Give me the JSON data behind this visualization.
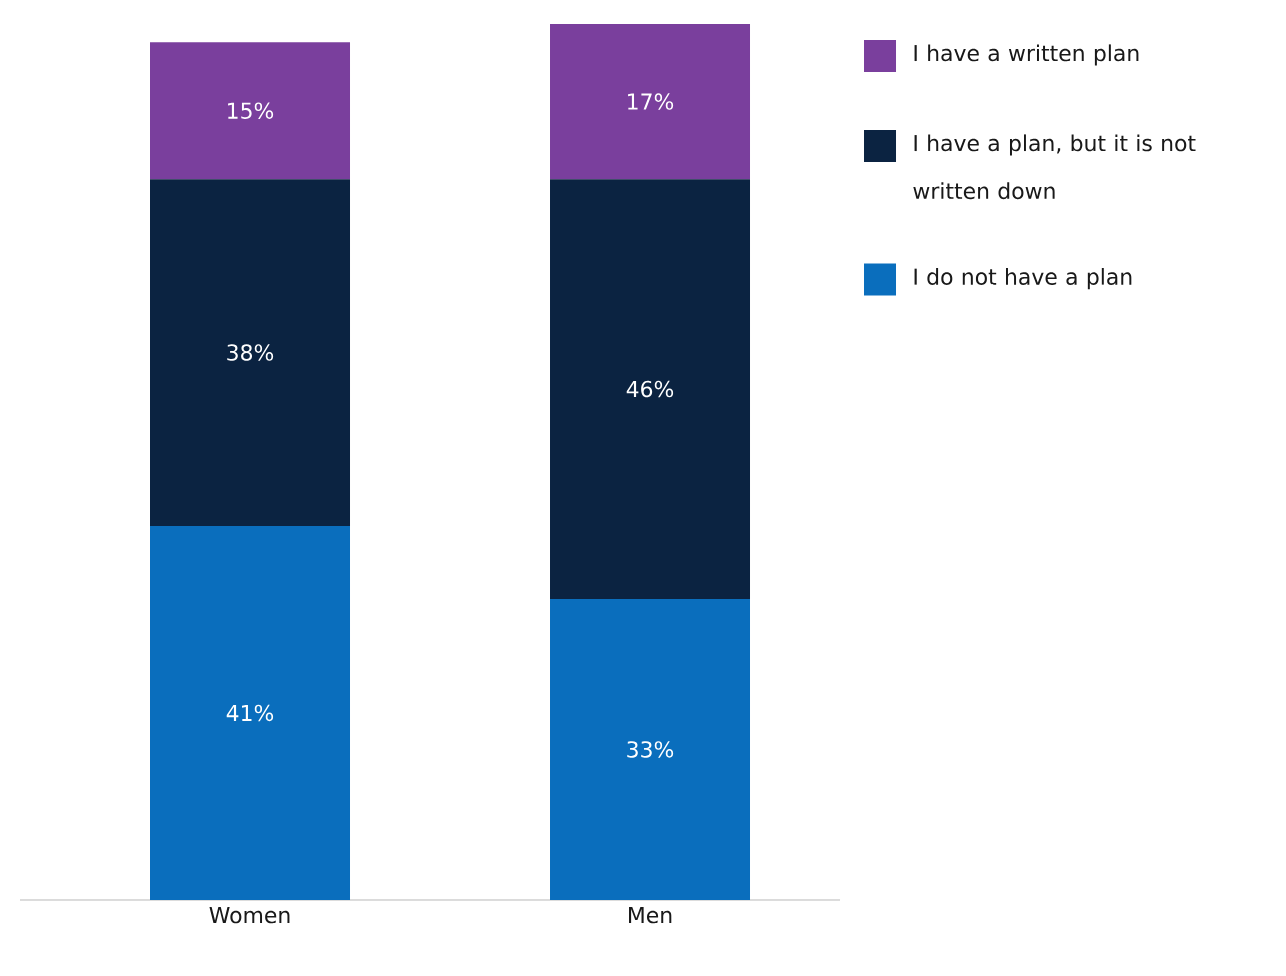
{
  "chart_data": {
    "type": "bar",
    "stacked": true,
    "legend": "right",
    "categories": [
      "Women",
      "Men"
    ],
    "series": [
      {
        "name": "I do not have a plan",
        "color": "#0a6ebd",
        "values": [
          41,
          33
        ],
        "value_labels": [
          "41%",
          "33%"
        ]
      },
      {
        "name": "I have a plan, but it is not written down",
        "color": "#0b2341",
        "values": [
          38,
          46
        ],
        "value_labels": [
          "38%",
          "46%"
        ]
      },
      {
        "name": "I have a written plan",
        "color": "#7a3f9d",
        "values": [
          15,
          17
        ],
        "value_labels": [
          "15%",
          "17%"
        ]
      }
    ]
  }
}
